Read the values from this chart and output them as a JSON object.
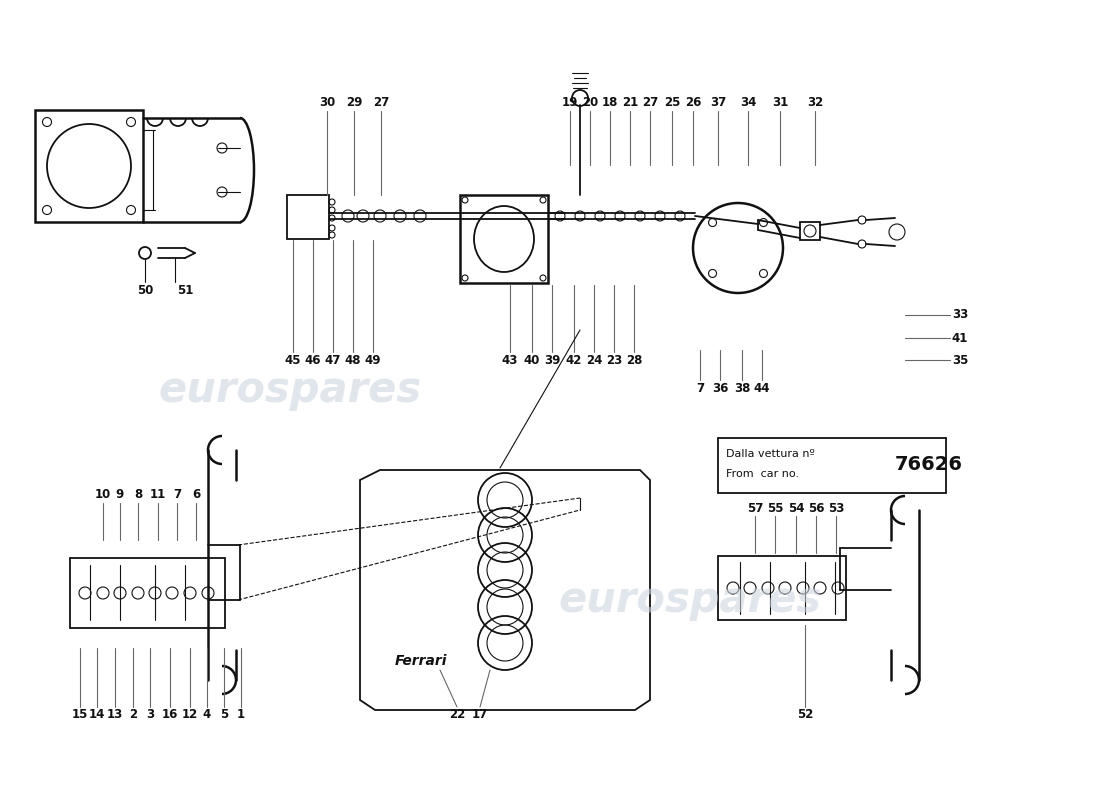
{
  "background_color": "#ffffff",
  "line_color": "#111111",
  "watermark_color": "#cdd5e0",
  "watermark_text": "eurospares",
  "dalla_line1": "Dalla vettura nº",
  "dalla_line2": "From  car no.",
  "car_number": "76626",
  "label_fontsize": 8.5,
  "carnumber_fontsize": 14,
  "lw_main": 1.3,
  "lw_thin": 0.8,
  "lw_thick": 1.8
}
